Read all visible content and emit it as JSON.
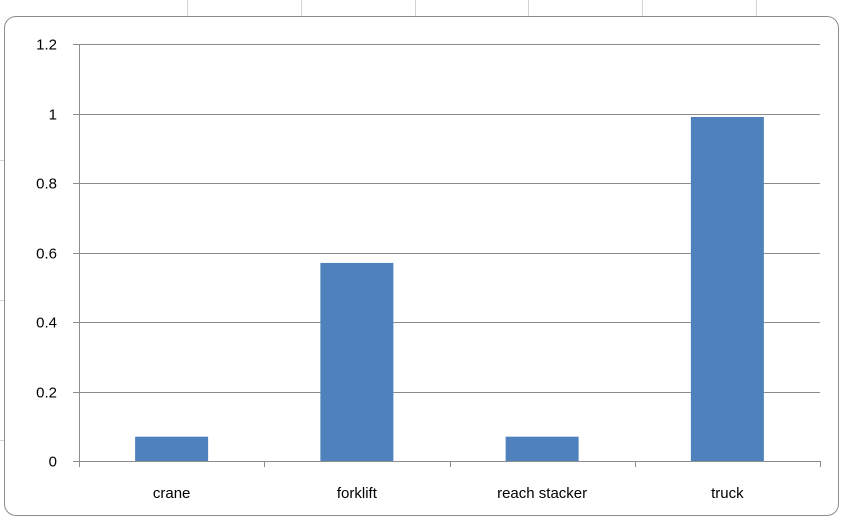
{
  "chart_data": {
    "type": "bar",
    "categories": [
      "crane",
      "forklift",
      "reach stacker",
      "truck"
    ],
    "values": [
      0.07,
      0.57,
      0.07,
      0.99
    ],
    "ylim": [
      0,
      1.2
    ],
    "yticks": [
      "0",
      "0.2",
      "0.4",
      "0.6",
      "0.8",
      "1",
      "1.2"
    ],
    "ytick_values": [
      0,
      0.2,
      0.4,
      0.6,
      0.8,
      1.0,
      1.2
    ],
    "grid": true,
    "legend": "none",
    "colors": {
      "bar": "#4f81bd",
      "gridline": "#8c8c8c",
      "axis": "#8c8c8c"
    }
  }
}
